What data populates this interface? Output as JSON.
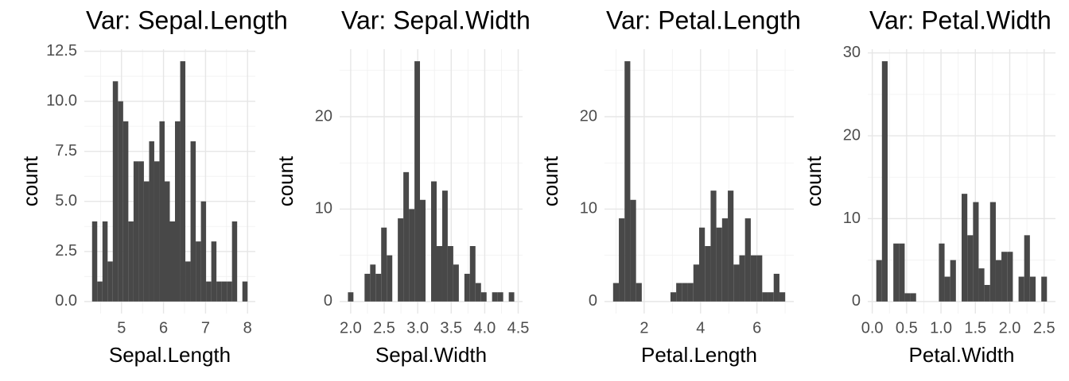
{
  "chart_data": [
    {
      "type": "histogram",
      "title": "Var: Sepal.Length",
      "x_label": "Sepal.Length",
      "y_label": "count",
      "color": "#484848",
      "grid": true,
      "bins": [
        4.3,
        4.423,
        4.547,
        4.67,
        4.793,
        4.917,
        5.04,
        5.163,
        5.287,
        5.41,
        5.533,
        5.657,
        5.78,
        5.903,
        6.027,
        6.15,
        6.273,
        6.397,
        6.52,
        6.643,
        6.767,
        6.89,
        7.013,
        7.137,
        7.26,
        7.383,
        7.507,
        7.63,
        7.753,
        7.877,
        8.0
      ],
      "counts": [
        4,
        1,
        4,
        2,
        11,
        10,
        9,
        4,
        7,
        7,
        6,
        8,
        7,
        9,
        6,
        4,
        9,
        12,
        2,
        8,
        3,
        5,
        1,
        3,
        1,
        1,
        1,
        4,
        0,
        1
      ],
      "xlim": [
        4.115,
        8.185
      ],
      "ylim": [
        -0.6,
        12.6
      ],
      "xticks": [
        5,
        6,
        7,
        8
      ],
      "minor_xticks": [
        4.5,
        5.5,
        6.5,
        7.5
      ],
      "yticks": [
        {
          "value": 0,
          "label": "0.0"
        },
        2.5,
        {
          "value": 5,
          "label": "5.0"
        },
        7.5,
        {
          "value": 10,
          "label": "10.0"
        },
        12.5
      ],
      "minor_yticks": [
        1.25,
        3.75,
        6.25,
        8.75,
        11.25
      ]
    },
    {
      "type": "histogram",
      "title": "Var: Sepal.Width",
      "x_label": "Sepal.Width",
      "y_label": "count",
      "color": "#484848",
      "grid": true,
      "bins": [
        1.959,
        2.041,
        2.124,
        2.207,
        2.29,
        2.372,
        2.455,
        2.538,
        2.621,
        2.703,
        2.786,
        2.869,
        2.952,
        3.034,
        3.117,
        3.2,
        3.283,
        3.366,
        3.448,
        3.531,
        3.614,
        3.697,
        3.779,
        3.862,
        3.945,
        4.028,
        4.11,
        4.193,
        4.276,
        4.359,
        4.441
      ],
      "counts": [
        1,
        0,
        0,
        3,
        4,
        3,
        8,
        5,
        0,
        9,
        14,
        10,
        26,
        11,
        0,
        13,
        6,
        12,
        6,
        4,
        0,
        3,
        6,
        2,
        1,
        0,
        1,
        1,
        0,
        1
      ],
      "xlim": [
        1.835,
        4.565
      ],
      "ylim": [
        -1.3,
        27.3
      ],
      "xticks": [
        {
          "value": 2,
          "label": "2.0"
        },
        2.5,
        {
          "value": 3,
          "label": "3.0"
        },
        3.5,
        {
          "value": 4,
          "label": "4.0"
        },
        4.5
      ],
      "minor_xticks": [
        2.25,
        2.75,
        3.25,
        3.75,
        4.25
      ],
      "yticks": [
        0,
        10,
        20
      ],
      "minor_yticks": [
        5,
        15,
        25
      ]
    },
    {
      "type": "histogram",
      "title": "Var: Petal.Length",
      "x_label": "Petal.Length",
      "y_label": "count",
      "color": "#484848",
      "grid": true,
      "bins": [
        0.898,
        1.102,
        1.305,
        1.508,
        1.712,
        1.915,
        2.119,
        2.322,
        2.526,
        2.729,
        2.933,
        3.136,
        3.339,
        3.543,
        3.746,
        3.95,
        4.153,
        4.357,
        4.56,
        4.763,
        4.967,
        5.17,
        5.374,
        5.577,
        5.781,
        5.984,
        6.188,
        6.391,
        6.594,
        6.798,
        7.002
      ],
      "counts": [
        2,
        9,
        26,
        11,
        2,
        0,
        0,
        0,
        0,
        0,
        1,
        2,
        2,
        2,
        4,
        8,
        6,
        12,
        8,
        9,
        12,
        4,
        5,
        9,
        5,
        5,
        1,
        1,
        3,
        1
      ],
      "xlim": [
        0.593,
        7.307
      ],
      "ylim": [
        -1.3,
        27.3
      ],
      "xticks": [
        2,
        4,
        6
      ],
      "minor_xticks": [
        1,
        3,
        5,
        7
      ],
      "yticks": [
        0,
        10,
        20
      ],
      "minor_yticks": [
        5,
        15,
        25
      ]
    },
    {
      "type": "histogram",
      "title": "Var: Petal.Width",
      "x_label": "Petal.Width",
      "y_label": "count",
      "color": "#484848",
      "grid": true,
      "bins": [
        0.059,
        0.141,
        0.224,
        0.307,
        0.39,
        0.472,
        0.555,
        0.638,
        0.721,
        0.803,
        0.886,
        0.969,
        1.052,
        1.134,
        1.217,
        1.3,
        1.383,
        1.466,
        1.548,
        1.631,
        1.714,
        1.797,
        1.879,
        1.962,
        2.045,
        2.128,
        2.21,
        2.293,
        2.376,
        2.459,
        2.541
      ],
      "counts": [
        5,
        29,
        0,
        7,
        7,
        1,
        1,
        0,
        0,
        0,
        0,
        7,
        3,
        5,
        0,
        13,
        8,
        12,
        4,
        2,
        12,
        5,
        6,
        6,
        0,
        3,
        8,
        3,
        0,
        3
      ],
      "xlim": [
        -0.065,
        2.665
      ],
      "ylim": [
        -1.45,
        30.45
      ],
      "xticks": [
        {
          "value": 0,
          "label": "0.0"
        },
        0.5,
        {
          "value": 1,
          "label": "1.0"
        },
        1.5,
        {
          "value": 2,
          "label": "2.0"
        },
        2.5
      ],
      "minor_xticks": [
        0.25,
        0.75,
        1.25,
        1.75,
        2.25
      ],
      "yticks": [
        0,
        10,
        20,
        30
      ],
      "minor_yticks": [
        5,
        15,
        25
      ]
    }
  ]
}
